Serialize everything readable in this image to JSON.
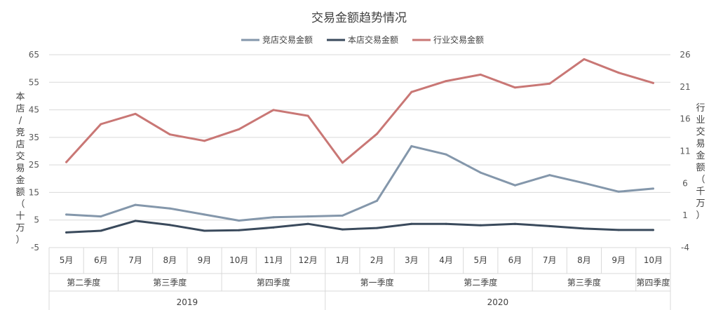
{
  "chart_data": {
    "type": "line",
    "title": "交易金额趋势情况",
    "ylabel_left": "本店/竞店交易金额（十万）",
    "ylabel_right": "行业交易金额（千万）",
    "left_axis": {
      "ticks": [
        "65",
        "55",
        "45",
        "35",
        "25",
        "15",
        "5",
        "-5"
      ],
      "range": [
        -5,
        65
      ]
    },
    "right_axis": {
      "ticks": [
        "26",
        "21",
        "16",
        "11",
        "6",
        "1",
        "-4"
      ],
      "range": [
        -4,
        26
      ]
    },
    "legend_position": "top-center",
    "months": [
      "5月",
      "6月",
      "7月",
      "8月",
      "9月",
      "10月",
      "11月",
      "12月",
      "1月",
      "2月",
      "3月",
      "4月",
      "5月",
      "6月",
      "7月",
      "8月",
      "9月",
      "10月"
    ],
    "quarters": [
      {
        "label": "第二季度",
        "span": 2
      },
      {
        "label": "第三季度",
        "span": 3
      },
      {
        "label": "第四季度",
        "span": 3
      },
      {
        "label": "第一季度",
        "span": 3
      },
      {
        "label": "第二季度",
        "span": 3
      },
      {
        "label": "第三季度",
        "span": 3
      },
      {
        "label": "第四季度",
        "span": 1
      }
    ],
    "years": [
      {
        "label": "2019",
        "span": 8
      },
      {
        "label": "2020",
        "span": 10
      }
    ],
    "series": [
      {
        "name": "竞店交易金额",
        "axis": "left",
        "color": "#8497ab",
        "values": [
          7.0,
          6.3,
          10.5,
          9.2,
          7.0,
          4.8,
          6.0,
          6.3,
          6.6,
          12.0,
          31.8,
          28.8,
          22.2,
          17.6,
          21.3,
          18.4,
          15.3,
          16.4
        ]
      },
      {
        "name": "本店交易金额",
        "axis": "left",
        "color": "#3a4a5c",
        "values": [
          0.5,
          1.1,
          4.7,
          3.2,
          1.1,
          1.3,
          2.3,
          3.6,
          1.6,
          2.1,
          3.6,
          3.6,
          3.1,
          3.6,
          2.8,
          1.9,
          1.4,
          1.4
        ]
      },
      {
        "name": "行业交易金额",
        "axis": "right",
        "color": "#c97775",
        "values": [
          9.3,
          15.2,
          16.8,
          13.6,
          12.6,
          14.4,
          17.4,
          16.5,
          9.2,
          13.7,
          20.2,
          21.9,
          22.9,
          20.9,
          21.5,
          25.3,
          23.2,
          21.6
        ]
      }
    ]
  }
}
